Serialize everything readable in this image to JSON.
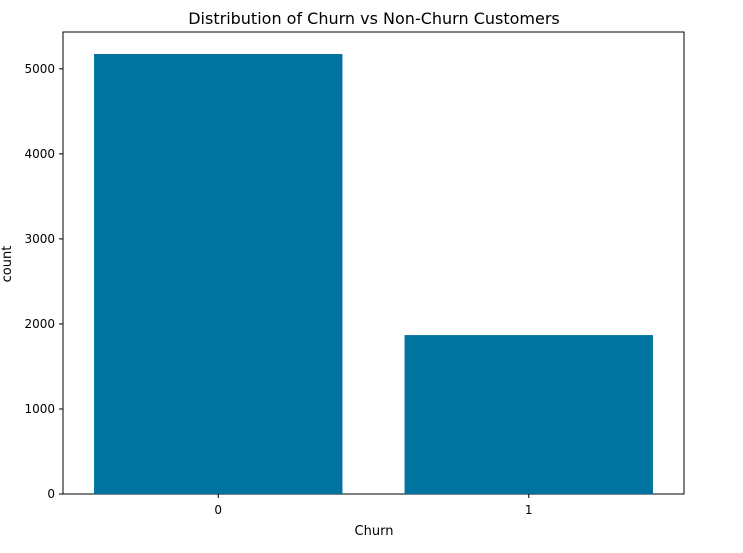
{
  "chart_data": {
    "type": "bar",
    "title": "Distribution of Churn vs Non-Churn Customers",
    "xlabel": "Churn",
    "ylabel": "count",
    "categories": [
      "0",
      "1"
    ],
    "values": [
      5174,
      1869
    ],
    "ylim": [
      0,
      5433
    ],
    "yticks": [
      0,
      1000,
      2000,
      3000,
      4000,
      5000
    ],
    "bar_color": "#0173a0",
    "grid": false,
    "legend": "none"
  }
}
